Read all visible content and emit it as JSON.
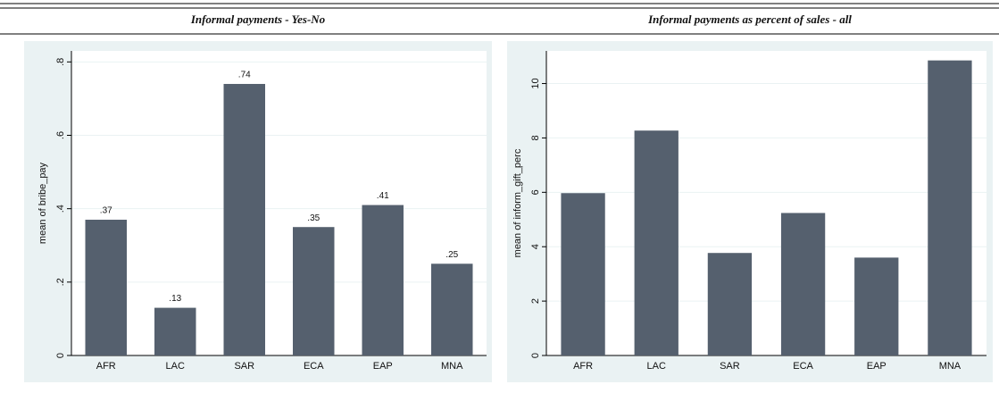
{
  "chart_data": [
    {
      "type": "bar",
      "title": "Informal payments - Yes-No",
      "y_label": "mean of bribe_pay",
      "categories": [
        "AFR",
        "LAC",
        "SAR",
        "ECA",
        "EAP",
        "MNA"
      ],
      "values": [
        0.37,
        0.13,
        0.74,
        0.35,
        0.41,
        0.25
      ],
      "value_labels": [
        ".37",
        ".13",
        ".74",
        ".35",
        ".41",
        ".25"
      ],
      "color": "#55606e",
      "ylim": [
        0,
        0.83
      ],
      "yticks": [
        0,
        {
          "value": 0.2,
          "label": ".2"
        },
        {
          "value": 0.4,
          "label": ".4"
        },
        {
          "value": 0.6,
          "label": ".6"
        },
        {
          "value": 0.8,
          "label": ".8"
        }
      ],
      "grid": true
    },
    {
      "type": "bar",
      "title": "Informal payments as percent of sales - all",
      "y_label": "mean of inform_gift_perc",
      "categories": [
        "AFR",
        "LAC",
        "SAR",
        "ECA",
        "EAP",
        "MNA"
      ],
      "values": [
        5.97,
        8.27,
        3.77,
        5.24,
        3.6,
        10.85
      ],
      "color": "#55606e",
      "ylim": [
        0,
        11.2
      ],
      "yticks": [
        0,
        2,
        4,
        6,
        8,
        10
      ],
      "grid": true
    }
  ]
}
